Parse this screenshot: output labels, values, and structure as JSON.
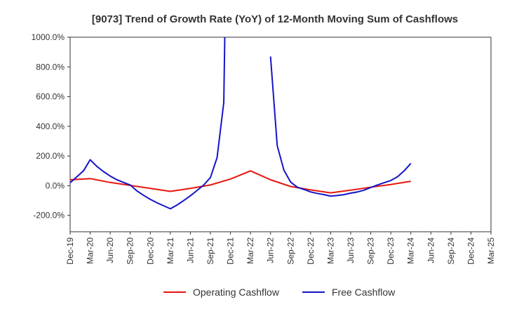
{
  "chart_data": {
    "type": "line",
    "title": "[9073]  Trend of Growth Rate (YoY) of 12-Month Moving Sum of Cashflows",
    "xlabel": "",
    "ylabel": "",
    "x_ticks": [
      "Dec-19",
      "Mar-20",
      "Jun-20",
      "Sep-20",
      "Dec-20",
      "Mar-21",
      "Jun-21",
      "Sep-21",
      "Dec-21",
      "Mar-22",
      "Jun-22",
      "Sep-22",
      "Dec-22",
      "Mar-23",
      "Jun-23",
      "Sep-23",
      "Dec-23",
      "Mar-24",
      "Jun-24",
      "Sep-24",
      "Dec-24",
      "Mar-25"
    ],
    "y_ticks": [
      "-200.0%",
      "0.0%",
      "200.0%",
      "400.0%",
      "600.0%",
      "800.0%",
      "1000.0%"
    ],
    "y_tick_values": [
      -200,
      0,
      200,
      400,
      600,
      800,
      1000
    ],
    "ylim": [
      -310,
      1000
    ],
    "grid": true,
    "legend_position": "bottom",
    "series": [
      {
        "name": "Operating Cashflow",
        "color": "#e8170f",
        "points": [
          [
            "Dec-19",
            40
          ],
          [
            "Mar-20",
            48
          ],
          [
            "Jun-20",
            22
          ],
          [
            "Sep-20",
            2
          ],
          [
            "Dec-20",
            -18
          ],
          [
            "Mar-21",
            -38
          ],
          [
            "Jun-21",
            -18
          ],
          [
            "Sep-21",
            5
          ],
          [
            "Dec-21",
            45
          ],
          [
            "Mar-22",
            100
          ],
          [
            "Jun-22",
            40
          ],
          [
            "Sep-22",
            -5
          ],
          [
            "Dec-22",
            -28
          ],
          [
            "Mar-23",
            -48
          ],
          [
            "Jun-23",
            -30
          ],
          [
            "Sep-23",
            -10
          ],
          [
            "Dec-23",
            8
          ],
          [
            "Mar-24",
            30
          ]
        ]
      },
      {
        "name": "Free Cashflow",
        "color": "#1414c8",
        "segments": [
          [
            [
              "Dec-19",
              20
            ],
            [
              "Jan-20",
              60
            ],
            [
              "Feb-20",
              100
            ],
            [
              "Mar-20",
              175
            ],
            [
              "Apr-20",
              130
            ],
            [
              "May-20",
              95
            ],
            [
              "Jun-20",
              65
            ],
            [
              "Jul-20",
              40
            ],
            [
              "Aug-20",
              22
            ],
            [
              "Sep-20",
              5
            ],
            [
              "Oct-20",
              -35
            ],
            [
              "Nov-20",
              -65
            ],
            [
              "Dec-20",
              -92
            ],
            [
              "Jan-21",
              -115
            ],
            [
              "Feb-21",
              -135
            ],
            [
              "Mar-21",
              -155
            ],
            [
              "Apr-21",
              -130
            ],
            [
              "May-21",
              -100
            ],
            [
              "Jun-21",
              -68
            ],
            [
              "Jul-21",
              -32
            ],
            [
              "Aug-21",
              5
            ],
            [
              "Sep-21",
              55
            ],
            [
              "Oct-21",
              190
            ],
            [
              "Nov-21",
              560
            ],
            [
              "Nov-21b",
              1000
            ]
          ],
          [
            [
              "Jun-22",
              870
            ],
            [
              "Jul-22",
              270
            ],
            [
              "Aug-22",
              105
            ],
            [
              "Sep-22",
              25
            ],
            [
              "Oct-22",
              -10
            ],
            [
              "Nov-22",
              -25
            ],
            [
              "Dec-22",
              -42
            ],
            [
              "Jan-23",
              -52
            ],
            [
              "Feb-23",
              -60
            ],
            [
              "Mar-23",
              -70
            ],
            [
              "Apr-23",
              -66
            ],
            [
              "May-23",
              -60
            ],
            [
              "Jun-23",
              -50
            ],
            [
              "Jul-23",
              -42
            ],
            [
              "Aug-23",
              -30
            ],
            [
              "Sep-23",
              -12
            ],
            [
              "Oct-23",
              5
            ],
            [
              "Nov-23",
              20
            ],
            [
              "Dec-23",
              35
            ],
            [
              "Jan-24",
              60
            ],
            [
              "Feb-24",
              100
            ],
            [
              "Mar-24",
              150
            ]
          ]
        ]
      }
    ]
  }
}
